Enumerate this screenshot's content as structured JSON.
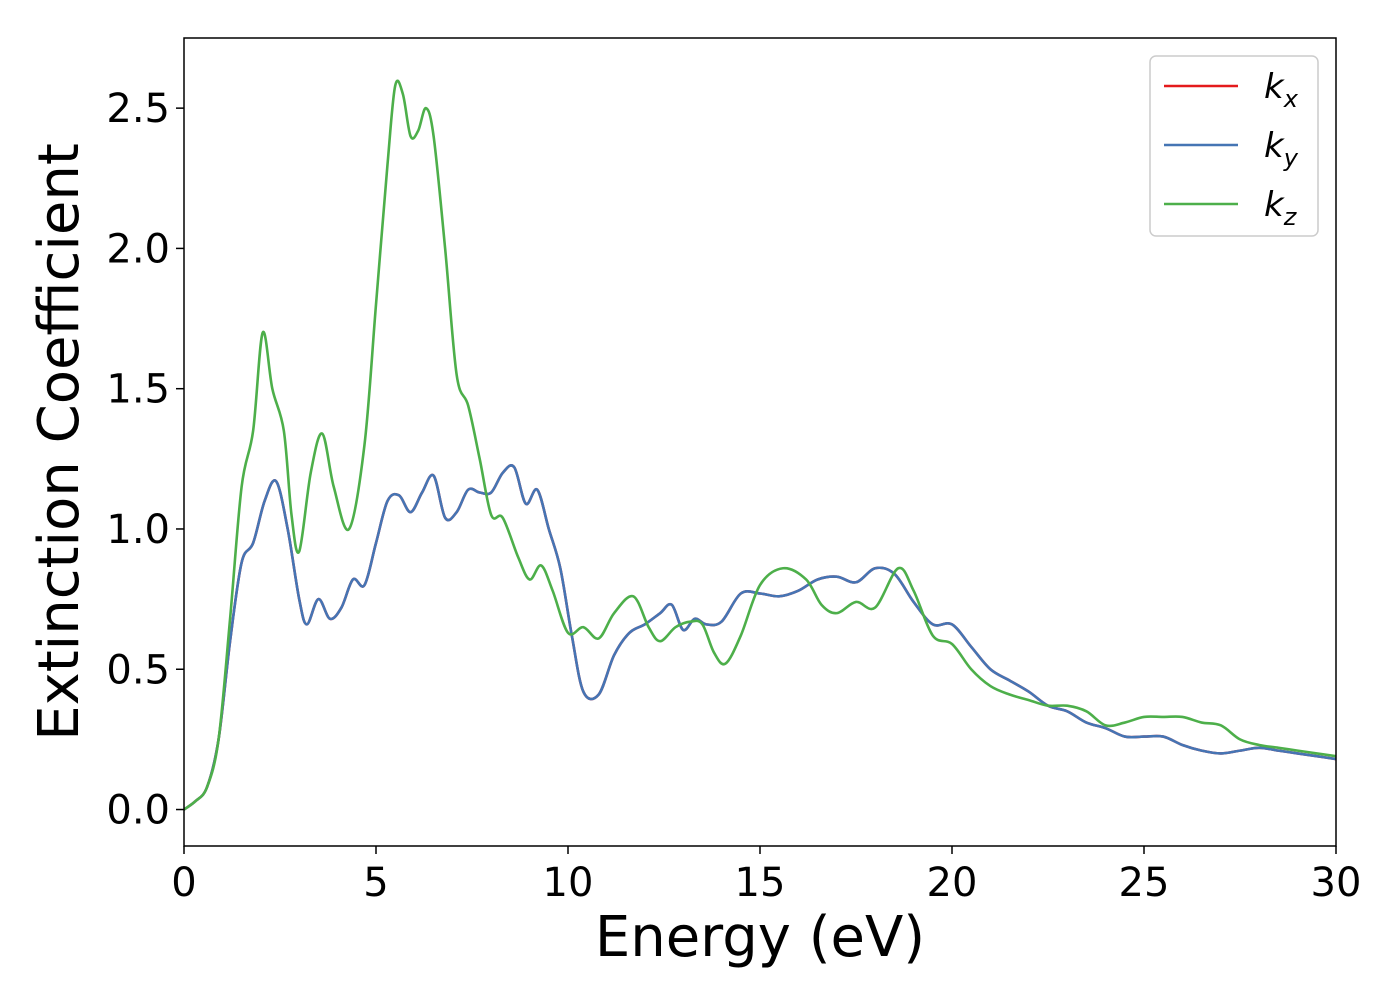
{
  "chart_data": {
    "type": "line",
    "xlabel": "Energy (eV)",
    "ylabel": "Extinction Coefficient",
    "xlim": [
      0,
      30
    ],
    "ylim": [
      -0.13,
      2.75
    ],
    "xticks": [
      0,
      5,
      10,
      15,
      20,
      25,
      30
    ],
    "xtick_labels": [
      "0",
      "5",
      "10",
      "15",
      "20",
      "25",
      "30"
    ],
    "yticks": [
      0.0,
      0.5,
      1.0,
      1.5,
      2.0,
      2.5
    ],
    "ytick_labels": [
      "0.0",
      "0.5",
      "1.0",
      "1.5",
      "2.0",
      "2.5"
    ],
    "grid": false,
    "legend_position": "top-right",
    "series": [
      {
        "name": "k",
        "subscript": "x",
        "color": "#e41a1c",
        "x": [
          0,
          0.3,
          0.6,
          0.9,
          1.2,
          1.5,
          1.8,
          2.1,
          2.4,
          2.7,
          3.0,
          3.2,
          3.5,
          3.8,
          4.1,
          4.4,
          4.7,
          5.0,
          5.3,
          5.6,
          5.9,
          6.2,
          6.5,
          6.8,
          7.1,
          7.4,
          7.7,
          8.0,
          8.3,
          8.6,
          8.9,
          9.2,
          9.5,
          9.8,
          10.1,
          10.4,
          10.8,
          11.2,
          11.6,
          12.0,
          12.4,
          12.7,
          13.0,
          13.3,
          13.6,
          14.0,
          14.5,
          15.0,
          15.5,
          16.0,
          16.5,
          17.0,
          17.5,
          18.0,
          18.5,
          19.0,
          19.5,
          20.0,
          20.5,
          21.0,
          21.5,
          22.0,
          22.5,
          23.0,
          23.5,
          24.0,
          24.5,
          25.0,
          25.5,
          26.0,
          26.5,
          27.0,
          27.5,
          28.0,
          28.5,
          29.0,
          29.5,
          30.0
        ],
        "y": [
          0.0,
          0.03,
          0.08,
          0.25,
          0.6,
          0.88,
          0.95,
          1.1,
          1.17,
          1.0,
          0.75,
          0.66,
          0.75,
          0.68,
          0.72,
          0.82,
          0.8,
          0.95,
          1.1,
          1.12,
          1.06,
          1.13,
          1.19,
          1.04,
          1.06,
          1.14,
          1.13,
          1.13,
          1.2,
          1.22,
          1.09,
          1.14,
          1.0,
          0.86,
          0.62,
          0.42,
          0.41,
          0.55,
          0.63,
          0.66,
          0.7,
          0.73,
          0.64,
          0.68,
          0.66,
          0.67,
          0.77,
          0.77,
          0.76,
          0.78,
          0.82,
          0.83,
          0.81,
          0.86,
          0.84,
          0.74,
          0.66,
          0.66,
          0.58,
          0.5,
          0.46,
          0.42,
          0.37,
          0.35,
          0.31,
          0.29,
          0.26,
          0.26,
          0.26,
          0.23,
          0.21,
          0.2,
          0.21,
          0.22,
          0.21,
          0.2,
          0.19,
          0.18
        ]
      },
      {
        "name": "k",
        "subscript": "y",
        "color": "#4575b4",
        "x": [
          0,
          0.3,
          0.6,
          0.9,
          1.2,
          1.5,
          1.8,
          2.1,
          2.4,
          2.7,
          3.0,
          3.2,
          3.5,
          3.8,
          4.1,
          4.4,
          4.7,
          5.0,
          5.3,
          5.6,
          5.9,
          6.2,
          6.5,
          6.8,
          7.1,
          7.4,
          7.7,
          8.0,
          8.3,
          8.6,
          8.9,
          9.2,
          9.5,
          9.8,
          10.1,
          10.4,
          10.8,
          11.2,
          11.6,
          12.0,
          12.4,
          12.7,
          13.0,
          13.3,
          13.6,
          14.0,
          14.5,
          15.0,
          15.5,
          16.0,
          16.5,
          17.0,
          17.5,
          18.0,
          18.5,
          19.0,
          19.5,
          20.0,
          20.5,
          21.0,
          21.5,
          22.0,
          22.5,
          23.0,
          23.5,
          24.0,
          24.5,
          25.0,
          25.5,
          26.0,
          26.5,
          27.0,
          27.5,
          28.0,
          28.5,
          29.0,
          29.5,
          30.0
        ],
        "y": [
          0.0,
          0.03,
          0.08,
          0.25,
          0.6,
          0.88,
          0.95,
          1.1,
          1.17,
          1.0,
          0.75,
          0.66,
          0.75,
          0.68,
          0.72,
          0.82,
          0.8,
          0.95,
          1.1,
          1.12,
          1.06,
          1.13,
          1.19,
          1.04,
          1.06,
          1.14,
          1.13,
          1.13,
          1.2,
          1.22,
          1.09,
          1.14,
          1.0,
          0.86,
          0.62,
          0.42,
          0.41,
          0.55,
          0.63,
          0.66,
          0.7,
          0.73,
          0.64,
          0.68,
          0.66,
          0.67,
          0.77,
          0.77,
          0.76,
          0.78,
          0.82,
          0.83,
          0.81,
          0.86,
          0.84,
          0.74,
          0.66,
          0.66,
          0.58,
          0.5,
          0.46,
          0.42,
          0.37,
          0.35,
          0.31,
          0.29,
          0.26,
          0.26,
          0.26,
          0.23,
          0.21,
          0.2,
          0.21,
          0.22,
          0.21,
          0.2,
          0.19,
          0.18
        ]
      },
      {
        "name": "k",
        "subscript": "z",
        "color": "#4daf4a",
        "x": [
          0,
          0.3,
          0.6,
          0.9,
          1.2,
          1.5,
          1.8,
          2.05,
          2.3,
          2.6,
          2.8,
          3.0,
          3.3,
          3.6,
          3.9,
          4.3,
          4.7,
          5.0,
          5.3,
          5.5,
          5.7,
          5.9,
          6.1,
          6.3,
          6.5,
          6.8,
          7.1,
          7.4,
          7.7,
          8.0,
          8.3,
          8.7,
          9.0,
          9.3,
          9.6,
          10.0,
          10.4,
          10.8,
          11.2,
          11.7,
          12.1,
          12.4,
          12.8,
          13.2,
          13.5,
          13.8,
          14.1,
          14.5,
          15.0,
          15.6,
          16.2,
          16.6,
          17.0,
          17.5,
          18.0,
          18.6,
          19.0,
          19.5,
          20.0,
          20.5,
          21.0,
          21.5,
          22.0,
          22.5,
          23.0,
          23.5,
          24.0,
          24.5,
          25.0,
          25.5,
          26.0,
          26.5,
          27.0,
          27.5,
          28.0,
          28.5,
          29.0,
          29.5,
          30.0
        ],
        "y": [
          0.0,
          0.03,
          0.08,
          0.25,
          0.68,
          1.15,
          1.35,
          1.7,
          1.5,
          1.35,
          1.05,
          0.92,
          1.2,
          1.34,
          1.15,
          1.0,
          1.3,
          1.8,
          2.3,
          2.58,
          2.55,
          2.4,
          2.42,
          2.5,
          2.4,
          2.0,
          1.55,
          1.44,
          1.25,
          1.05,
          1.04,
          0.9,
          0.82,
          0.87,
          0.78,
          0.63,
          0.65,
          0.61,
          0.7,
          0.76,
          0.65,
          0.6,
          0.65,
          0.67,
          0.66,
          0.56,
          0.52,
          0.62,
          0.8,
          0.86,
          0.82,
          0.73,
          0.7,
          0.74,
          0.72,
          0.86,
          0.78,
          0.62,
          0.59,
          0.5,
          0.44,
          0.41,
          0.39,
          0.37,
          0.37,
          0.35,
          0.3,
          0.31,
          0.33,
          0.33,
          0.33,
          0.31,
          0.3,
          0.25,
          0.23,
          0.22,
          0.21,
          0.2,
          0.19
        ]
      }
    ]
  }
}
